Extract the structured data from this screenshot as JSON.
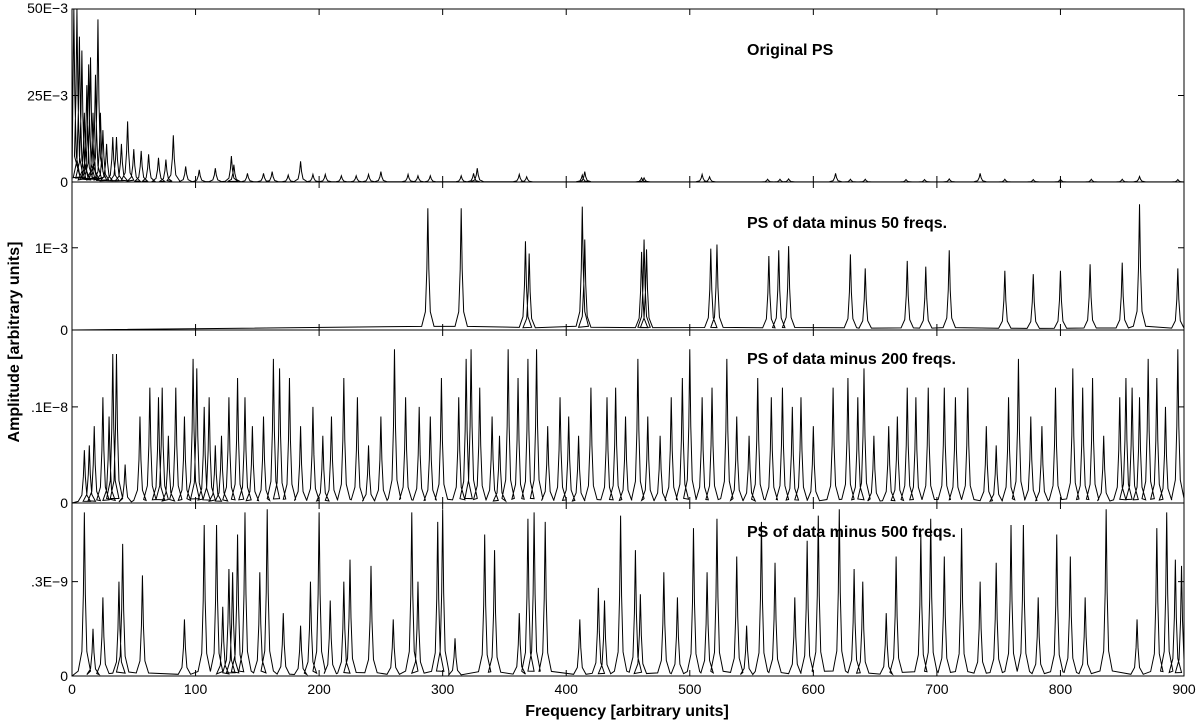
{
  "chart_data": {
    "type": "line",
    "xlabel": "Frequency [arbitrary units]",
    "ylabel": "Amplitude [arbitrary units]",
    "xlim": [
      0,
      900
    ],
    "x_ticks": [
      "0",
      "100",
      "200",
      "300",
      "400",
      "500",
      "600",
      "700",
      "800",
      "900"
    ],
    "grid": false,
    "panels": [
      {
        "title": "Original PS",
        "ylim": [
          0,
          0.05
        ],
        "y_ticks": [
          {
            "value": 0,
            "label": "0"
          },
          {
            "value": 0.025,
            "label": "25E−3"
          },
          {
            "value": 0.05,
            "label": "50E−3"
          }
        ],
        "peaks": [
          [
            1.5,
            0.05
          ],
          [
            4,
            0.05
          ],
          [
            6,
            0.042
          ],
          [
            8,
            0.038
          ],
          [
            10,
            0.02
          ],
          [
            12,
            0.028
          ],
          [
            13.5,
            0.034
          ],
          [
            15,
            0.036
          ],
          [
            17,
            0.02
          ],
          [
            19,
            0.031
          ],
          [
            21,
            0.047
          ],
          [
            23,
            0.02
          ],
          [
            25,
            0.015
          ],
          [
            28,
            0.011
          ],
          [
            33,
            0.013
          ],
          [
            36,
            0.013
          ],
          [
            40,
            0.011
          ],
          [
            45,
            0.0175
          ],
          [
            50,
            0.0095
          ],
          [
            56,
            0.009
          ],
          [
            62,
            0.008
          ],
          [
            70,
            0.007
          ],
          [
            76,
            0.0065
          ],
          [
            82,
            0.0135
          ],
          [
            92,
            0.0045
          ],
          [
            103,
            0.0035
          ],
          [
            116,
            0.004
          ],
          [
            129,
            0.0075
          ],
          [
            131,
            0.005
          ],
          [
            142,
            0.0025
          ],
          [
            155,
            0.0025
          ],
          [
            162,
            0.003
          ],
          [
            175,
            0.002
          ],
          [
            185,
            0.006
          ],
          [
            195,
            0.0022
          ],
          [
            205,
            0.0022
          ],
          [
            218,
            0.0018
          ],
          [
            230,
            0.0018
          ],
          [
            240,
            0.0022
          ],
          [
            250,
            0.003
          ],
          [
            272,
            0.0022
          ],
          [
            280,
            0.0018
          ],
          [
            290,
            0.0018
          ],
          [
            315,
            0.0018
          ],
          [
            325,
            0.0025
          ],
          [
            328,
            0.004
          ],
          [
            362,
            0.0022
          ],
          [
            368,
            0.0015
          ],
          [
            413,
            0.002
          ],
          [
            415,
            0.003
          ],
          [
            461,
            0.0012
          ],
          [
            463,
            0.0012
          ],
          [
            510,
            0.0022
          ],
          [
            516,
            0.0015
          ],
          [
            563,
            0.0008
          ],
          [
            573,
            0.0008
          ],
          [
            580,
            0.0009
          ],
          [
            618,
            0.0025
          ],
          [
            630,
            0.0008
          ],
          [
            642,
            0.0008
          ],
          [
            675,
            0.0007
          ],
          [
            690,
            0.0007
          ],
          [
            710,
            0.0009
          ],
          [
            735,
            0.0025
          ],
          [
            755,
            0.0008
          ],
          [
            778,
            0.0007
          ],
          [
            800,
            0.0008
          ],
          [
            825,
            0.0008
          ],
          [
            850,
            0.0008
          ],
          [
            864,
            0.0016
          ],
          [
            895,
            0.0007
          ]
        ]
      },
      {
        "title": "PS of data minus 50 freqs.",
        "ylim": [
          0,
          0.0018
        ],
        "y_ticks": [
          {
            "value": 0,
            "label": "0"
          },
          {
            "value": 0.001,
            "label": "1E−3"
          }
        ],
        "peaks": [
          [
            288,
            0.00148
          ],
          [
            315,
            0.00148
          ],
          [
            367,
            0.00108
          ],
          [
            370,
            0.00093
          ],
          [
            413,
            0.0015
          ],
          [
            415,
            0.0011
          ],
          [
            461,
            0.00095
          ],
          [
            463,
            0.0011
          ],
          [
            465,
            0.00098
          ],
          [
            517,
            0.00099
          ],
          [
            522,
            0.00104
          ],
          [
            564,
            0.0009
          ],
          [
            572,
            0.00097
          ],
          [
            580,
            0.00102
          ],
          [
            630,
            0.00092
          ],
          [
            642,
            0.00075
          ],
          [
            676,
            0.00084
          ],
          [
            691,
            0.00077
          ],
          [
            710,
            0.00097
          ],
          [
            755,
            0.00072
          ],
          [
            778,
            0.00068
          ],
          [
            800,
            0.00072
          ],
          [
            824,
            0.0008
          ],
          [
            850,
            0.00082
          ],
          [
            864,
            0.00153
          ],
          [
            895,
            0.00075
          ]
        ]
      },
      {
        "title": "PS of data minus 200 freqs.",
        "ylim": [
          0,
          1.8e-09
        ],
        "y_ticks": [
          {
            "value": 0,
            "label": "0"
          },
          {
            "value": 1e-09,
            "label": ".1E−8"
          }
        ],
        "peaks": [
          [
            10,
            5.5e-10
          ],
          [
            14,
            6e-10
          ],
          [
            18,
            8e-10
          ],
          [
            25,
            1.1e-09
          ],
          [
            30,
            9e-10
          ],
          [
            33,
            1.55e-09
          ],
          [
            36,
            1.55e-09
          ],
          [
            43,
            4e-10
          ],
          [
            55,
            9e-10
          ],
          [
            63,
            1.2e-09
          ],
          [
            70,
            1.1e-09
          ],
          [
            73,
            1.2e-09
          ],
          [
            78,
            7e-10
          ],
          [
            84,
            1.2e-09
          ],
          [
            91,
            9e-10
          ],
          [
            98,
            1.5e-09
          ],
          [
            101,
            1.4e-09
          ],
          [
            107,
            1e-09
          ],
          [
            111,
            1.1e-09
          ],
          [
            116,
            6e-10
          ],
          [
            121,
            7e-10
          ],
          [
            127,
            1.1e-09
          ],
          [
            134,
            1.3e-09
          ],
          [
            140,
            1.1e-09
          ],
          [
            146,
            8e-10
          ],
          [
            155,
            9e-10
          ],
          [
            163,
            1.5e-09
          ],
          [
            168,
            1.4e-09
          ],
          [
            176,
            1.3e-09
          ],
          [
            185,
            8e-10
          ],
          [
            195,
            1e-09
          ],
          [
            203,
            7e-10
          ],
          [
            210,
            9e-10
          ],
          [
            220,
            1.3e-09
          ],
          [
            231,
            1.1e-09
          ],
          [
            240,
            6e-10
          ],
          [
            250,
            9e-10
          ],
          [
            261,
            1.6e-09
          ],
          [
            270,
            1.1e-09
          ],
          [
            281,
            1e-09
          ],
          [
            290,
            9e-10
          ],
          [
            299,
            1.3e-09
          ],
          [
            313,
            1.1e-09
          ],
          [
            319,
            1.5e-09
          ],
          [
            323,
            1.6e-09
          ],
          [
            330,
            1.2e-09
          ],
          [
            340,
            9e-10
          ],
          [
            346,
            7e-10
          ],
          [
            353,
            1.6e-09
          ],
          [
            361,
            1.3e-09
          ],
          [
            369,
            1.5e-09
          ],
          [
            376,
            1.6e-09
          ],
          [
            385,
            8e-10
          ],
          [
            395,
            1.1e-09
          ],
          [
            402,
            9e-10
          ],
          [
            410,
            7e-10
          ],
          [
            420,
            1.2e-09
          ],
          [
            433,
            1.1e-09
          ],
          [
            440,
            1.2e-09
          ],
          [
            448,
            9e-10
          ],
          [
            458,
            1.5e-09
          ],
          [
            466,
            9e-10
          ],
          [
            476,
            7e-10
          ],
          [
            485,
            1.1e-09
          ],
          [
            494,
            1.3e-09
          ],
          [
            500,
            1.6e-09
          ],
          [
            510,
            1.1e-09
          ],
          [
            518,
            1.2e-09
          ],
          [
            530,
            1.5e-09
          ],
          [
            538,
            9e-10
          ],
          [
            548,
            7e-10
          ],
          [
            555,
            1.3e-09
          ],
          [
            566,
            1.1e-09
          ],
          [
            575,
            1.2e-09
          ],
          [
            583,
            1e-09
          ],
          [
            590,
            1.1e-09
          ],
          [
            600,
            8e-10
          ],
          [
            616,
            1.2e-09
          ],
          [
            628,
            1.3e-09
          ],
          [
            636,
            1.1e-09
          ],
          [
            641,
            1.4e-09
          ],
          [
            649,
            7e-10
          ],
          [
            661,
            8e-10
          ],
          [
            668,
            9e-10
          ],
          [
            676,
            1.2e-09
          ],
          [
            683,
            1.1e-09
          ],
          [
            693,
            1.2e-09
          ],
          [
            706,
            1.2e-09
          ],
          [
            715,
            1.1e-09
          ],
          [
            725,
            1.2e-09
          ],
          [
            740,
            8e-10
          ],
          [
            748,
            6e-10
          ],
          [
            758,
            1.1e-09
          ],
          [
            766,
            1.5e-09
          ],
          [
            776,
            9e-10
          ],
          [
            785,
            8e-10
          ],
          [
            796,
            1.2e-09
          ],
          [
            810,
            1.4e-09
          ],
          [
            818,
            1.2e-09
          ],
          [
            826,
            1.3e-09
          ],
          [
            835,
            7e-10
          ],
          [
            848,
            1.1e-09
          ],
          [
            853,
            1.3e-09
          ],
          [
            858,
            1.2e-09
          ],
          [
            864,
            1.1e-09
          ],
          [
            871,
            1.5e-09
          ],
          [
            878,
            1.3e-09
          ],
          [
            885,
            1e-09
          ],
          [
            895,
            1.6e-09
          ]
        ]
      },
      {
        "title": "PS of data minus 500 freqs.",
        "ylim": [
          0,
          5.5e-10
        ],
        "y_ticks": [
          {
            "value": 0,
            "label": "0"
          },
          {
            "value": 3e-10,
            "label": ".3E−9"
          }
        ],
        "peaks": [
          [
            10,
            5.2e-10
          ],
          [
            17,
            1.5e-10
          ],
          [
            25,
            2.5e-10
          ],
          [
            38,
            3e-10
          ],
          [
            41,
            4.2e-10
          ],
          [
            57,
            3.2e-10
          ],
          [
            91,
            1.8e-10
          ],
          [
            107,
            4.8e-10
          ],
          [
            117,
            4.8e-10
          ],
          [
            122,
            2.2e-10
          ],
          [
            127,
            3.4e-10
          ],
          [
            130,
            3.3e-10
          ],
          [
            134,
            4.5e-10
          ],
          [
            140,
            5.2e-10
          ],
          [
            152,
            3.3e-10
          ],
          [
            158,
            5.3e-10
          ],
          [
            171,
            2e-10
          ],
          [
            185,
            1.6e-10
          ],
          [
            193,
            3e-10
          ],
          [
            200,
            5.2e-10
          ],
          [
            209,
            2.4e-10
          ],
          [
            220,
            3e-10
          ],
          [
            225,
            3.7e-10
          ],
          [
            242,
            3.5e-10
          ],
          [
            260,
            1.8e-10
          ],
          [
            275,
            5.2e-10
          ],
          [
            280,
            3e-10
          ],
          [
            296,
            4.9e-10
          ],
          [
            300,
            5.3e-10
          ],
          [
            310,
            1.2e-10
          ],
          [
            334,
            4.5e-10
          ],
          [
            342,
            4e-10
          ],
          [
            362,
            2e-10
          ],
          [
            369,
            5e-10
          ],
          [
            374,
            5.2e-10
          ],
          [
            383,
            4.9e-10
          ],
          [
            411,
            1.8e-10
          ],
          [
            426,
            2.8e-10
          ],
          [
            431,
            2.4e-10
          ],
          [
            444,
            5.1e-10
          ],
          [
            456,
            4e-10
          ],
          [
            460,
            2.6e-10
          ],
          [
            479,
            3.3e-10
          ],
          [
            490,
            2.5e-10
          ],
          [
            503,
            4.7e-10
          ],
          [
            514,
            3.3e-10
          ],
          [
            522,
            5e-10
          ],
          [
            538,
            3.8e-10
          ],
          [
            546,
            1.6e-10
          ],
          [
            558,
            4.9e-10
          ],
          [
            569,
            3.6e-10
          ],
          [
            585,
            2.5e-10
          ],
          [
            595,
            4.3e-10
          ],
          [
            604,
            5.1e-10
          ],
          [
            621,
            5.3e-10
          ],
          [
            633,
            3.4e-10
          ],
          [
            640,
            3e-10
          ],
          [
            659,
            2e-10
          ],
          [
            667,
            3.8e-10
          ],
          [
            687,
            4.5e-10
          ],
          [
            695,
            5e-10
          ],
          [
            706,
            3.8e-10
          ],
          [
            720,
            4.7e-10
          ],
          [
            735,
            3e-10
          ],
          [
            748,
            3.6e-10
          ],
          [
            760,
            4.8e-10
          ],
          [
            770,
            4.8e-10
          ],
          [
            782,
            2.5e-10
          ],
          [
            797,
            4.5e-10
          ],
          [
            808,
            3.8e-10
          ],
          [
            820,
            2.5e-10
          ],
          [
            837,
            5.3e-10
          ],
          [
            862,
            1.8e-10
          ],
          [
            878,
            4.7e-10
          ],
          [
            886,
            5.2e-10
          ],
          [
            893,
            3.7e-10
          ],
          [
            898,
            3.5e-10
          ]
        ]
      }
    ]
  }
}
